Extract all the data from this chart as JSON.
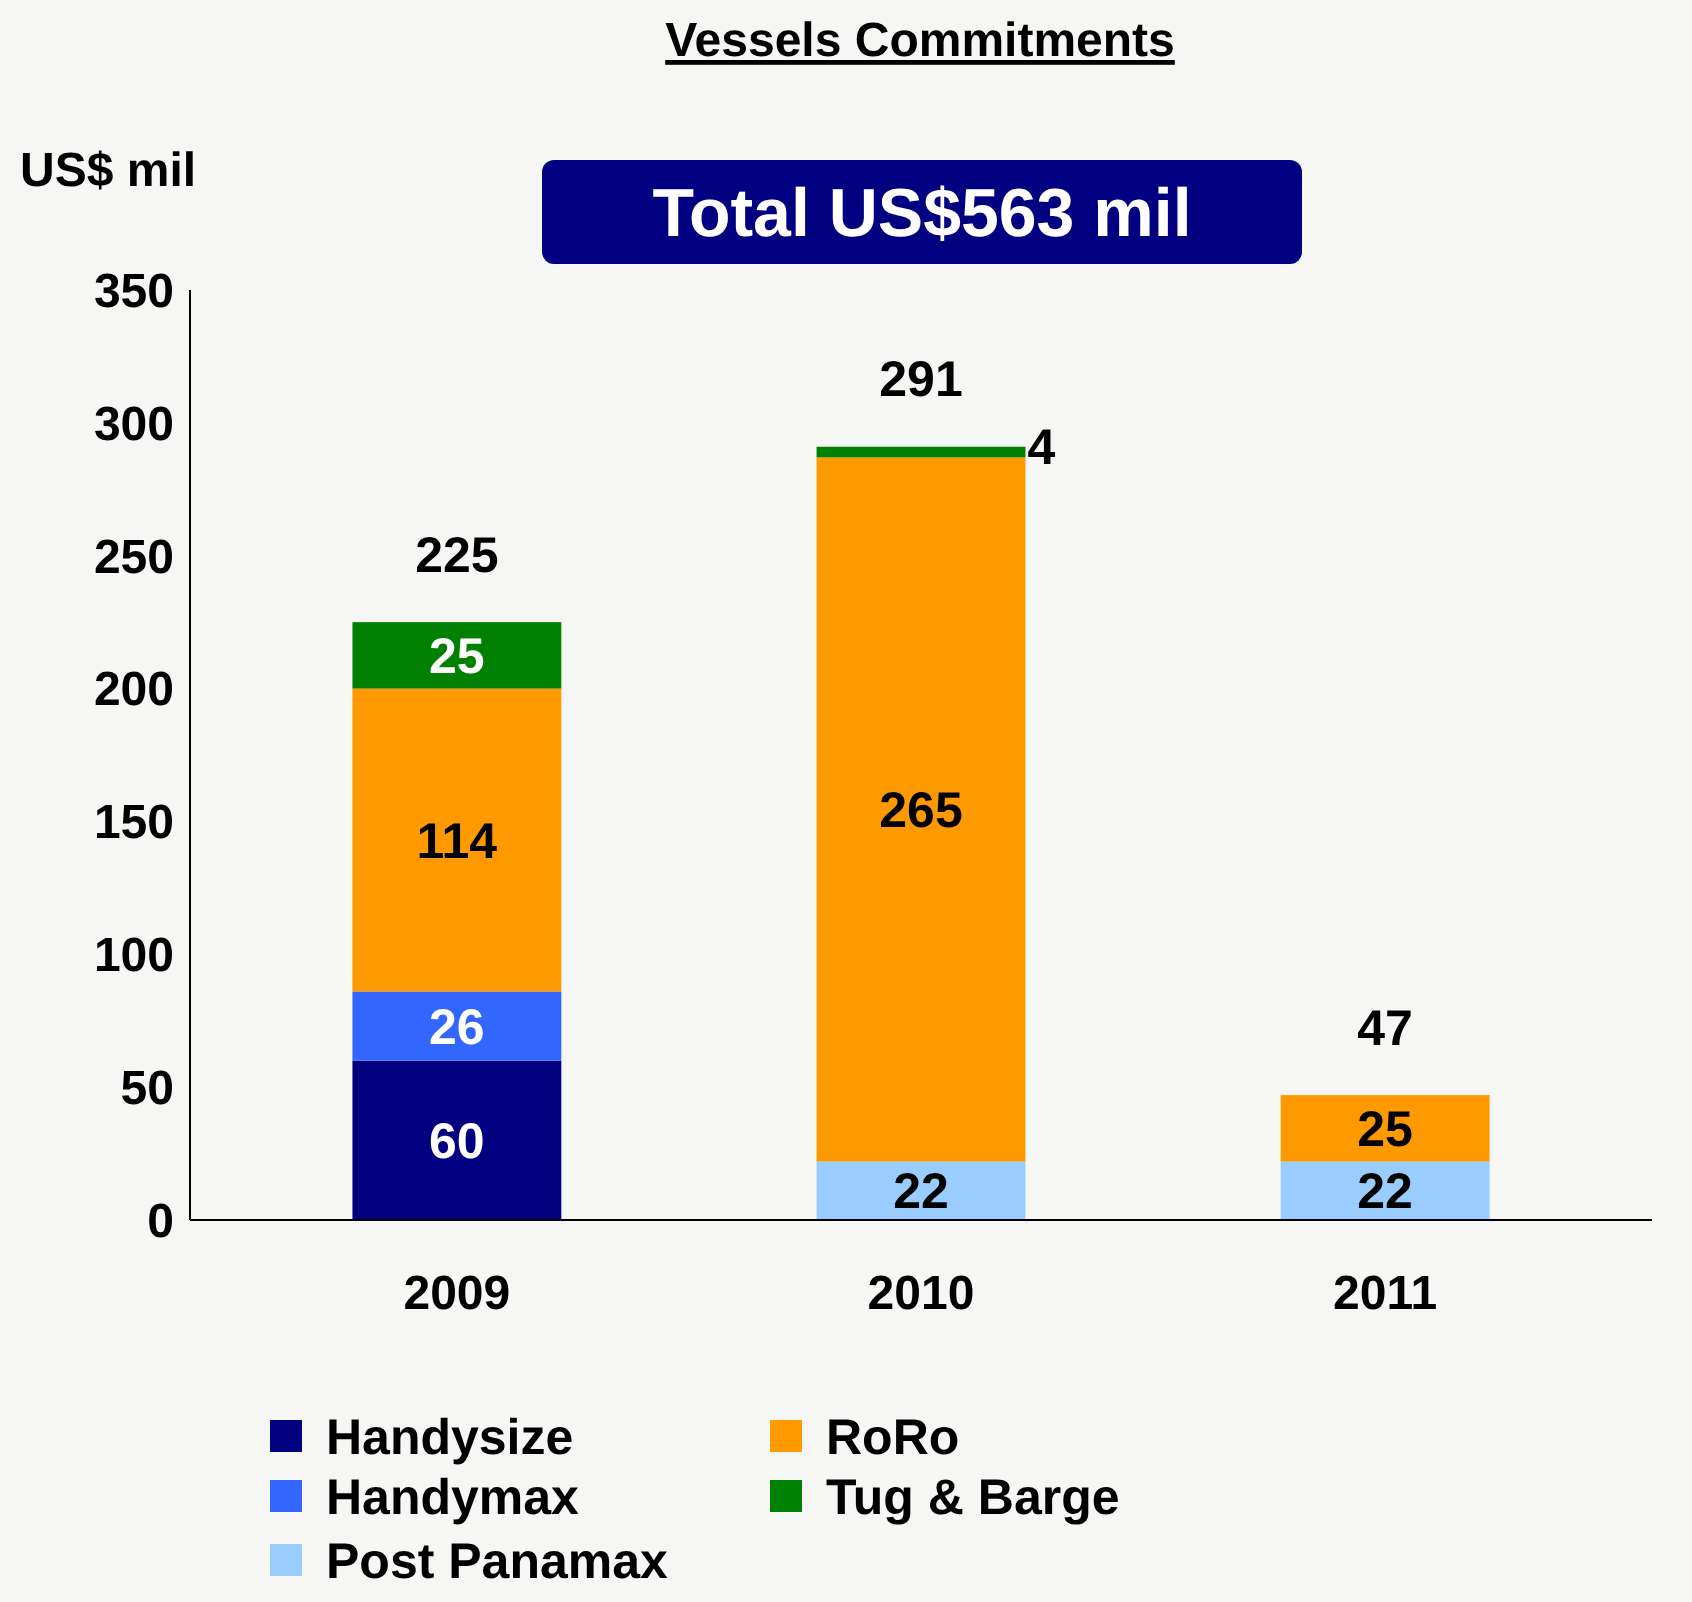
{
  "chart_data": {
    "type": "bar",
    "title": "Vessels Commitments",
    "ylabel": "US$ mil",
    "annotations": [
      "Total US$563 mil"
    ],
    "categories": [
      "2009",
      "2010",
      "2011"
    ],
    "stacked": true,
    "series": [
      {
        "name": "Handysize",
        "color": "#000080",
        "values": [
          60,
          null,
          null
        ]
      },
      {
        "name": "Handymax",
        "color": "#3366ff",
        "values": [
          26,
          null,
          null
        ]
      },
      {
        "name": "Post Panamax",
        "color": "#99ccff",
        "values": [
          null,
          22,
          22
        ]
      },
      {
        "name": "RoRo",
        "color": "#ff9900",
        "values": [
          114,
          265,
          25
        ]
      },
      {
        "name": "Tug & Barge",
        "color": "#008000",
        "values": [
          25,
          4,
          null
        ]
      }
    ],
    "data_labels": true,
    "totals": [
      "225",
      "291",
      "47"
    ],
    "ylim": [
      0,
      350
    ],
    "yticks": [
      0,
      50,
      100,
      150,
      200,
      250,
      300,
      350
    ],
    "grid": false,
    "legend": "bottom"
  }
}
